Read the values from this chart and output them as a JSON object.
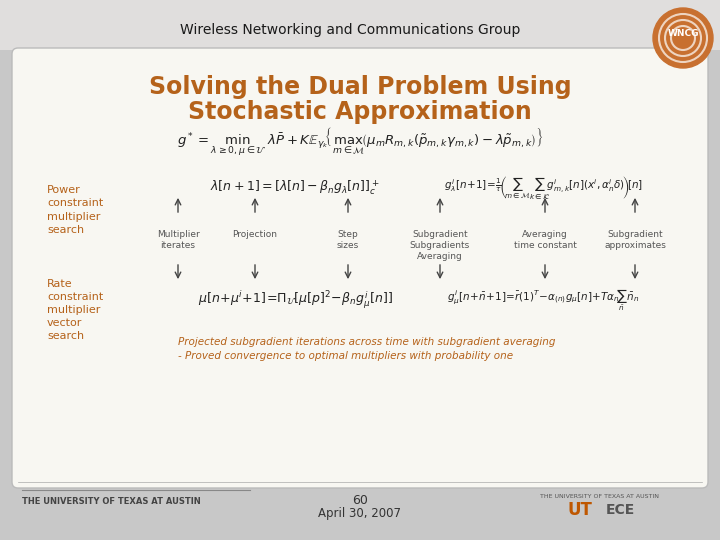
{
  "bg_outer": "#c8c8c8",
  "bg_slide": "#f8f7f2",
  "header_text": "Wireless Networking and Communications Group",
  "title_line1": "Solving the Dual Problem Using",
  "title_line2": "Stochastic Approximation",
  "title_color": "#b5621a",
  "header_color": "#1a1a1a",
  "label_color": "#b5621a",
  "body_color": "#222222",
  "italic_color": "#b5621a",
  "arrow_color": "#444444",
  "label_text_color": "#555555",
  "footer_left": "THE UNIVERSITY OF TEXAS AT AUSTIN",
  "footer_center_line1": "60",
  "footer_center_line2": "April 30, 2007"
}
